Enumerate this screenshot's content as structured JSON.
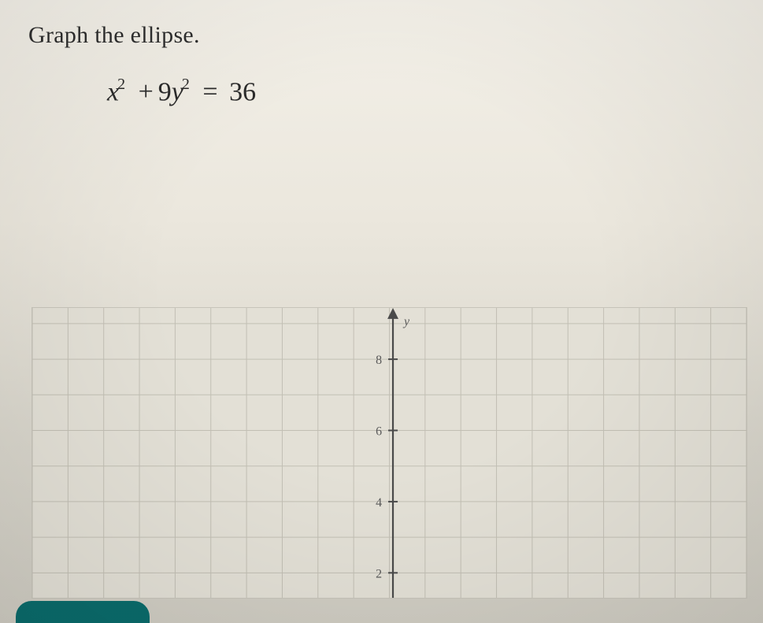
{
  "question": {
    "prompt_text": "Graph the ellipse.",
    "equation_parts": {
      "term1_var": "x",
      "term1_exp": "2",
      "plus": "+",
      "coef2": "9",
      "term2_var": "y",
      "term2_exp": "2",
      "eq": "=",
      "rhs": "36"
    }
  },
  "graph": {
    "type": "cartesian-grid",
    "background_color": "#e3e0d6",
    "grid_color": "#c2bfb4",
    "axis_color": "#4a4a4a",
    "label_color": "#5a5a5a",
    "label_fontsize": 16,
    "x_range": [
      -10,
      10
    ],
    "y_visible": [
      1,
      9
    ],
    "grid_step": 1,
    "y_axis_label": "y",
    "y_ticks": [
      2,
      4,
      6,
      8
    ],
    "axis_position_x_ratio": 0.505,
    "viewbox_w": 909,
    "viewbox_h": 370,
    "tick_font_family": "Georgia, serif"
  },
  "colors": {
    "page_bg_top": "#f3f0e8",
    "page_bg_bottom": "#cfccc2",
    "button_bg": "#0a6b6b"
  }
}
